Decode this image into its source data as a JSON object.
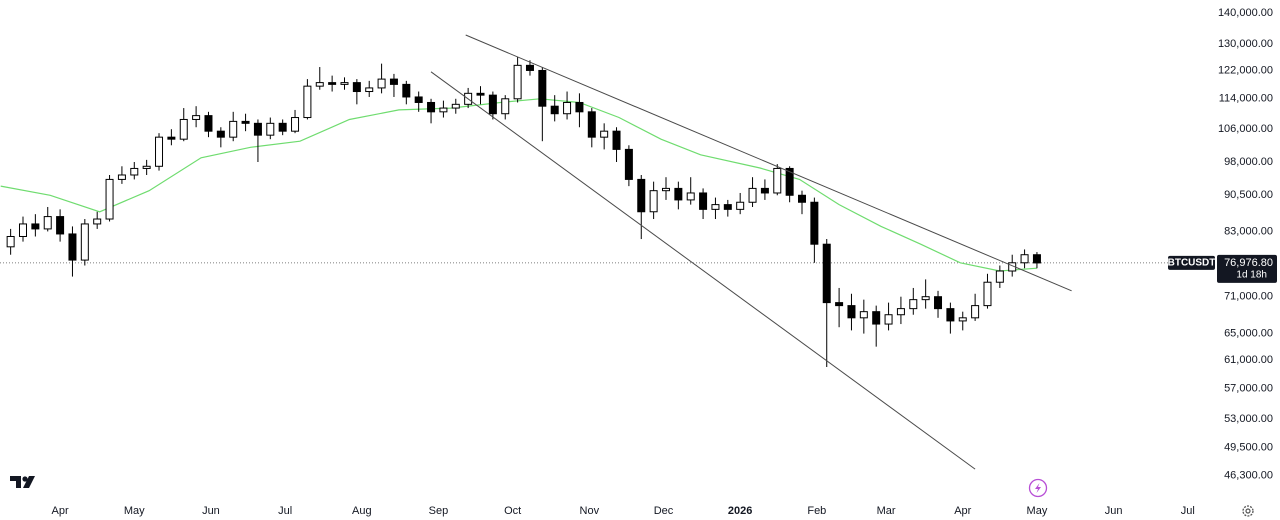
{
  "chart_data": {
    "type": "candlestick",
    "symbol": "BTCUSDT",
    "last_price": {
      "value": 76976.8,
      "label": "76,976.80"
    },
    "countdown": "1d 18h",
    "log_y": true,
    "ylim": [
      43650,
      144400
    ],
    "yticks": [
      {
        "value": 140000,
        "label": "140,000.00"
      },
      {
        "value": 130000,
        "label": "130,000.00"
      },
      {
        "value": 122000,
        "label": "122,000.00"
      },
      {
        "value": 114000,
        "label": "114,000.00"
      },
      {
        "value": 106000,
        "label": "106,000.00"
      },
      {
        "value": 98000,
        "label": "98,000.00"
      },
      {
        "value": 90500,
        "label": "90,500.00"
      },
      {
        "value": 83000,
        "label": "83,000.00"
      },
      {
        "value": 71000,
        "label": "71,000.00"
      },
      {
        "value": 65000,
        "label": "65,000.00"
      },
      {
        "value": 61000,
        "label": "61,000.00"
      },
      {
        "value": 57000,
        "label": "57,000.00"
      },
      {
        "value": 53000,
        "label": "53,000.00"
      },
      {
        "value": 49500,
        "label": "49,500.00"
      },
      {
        "value": 46300,
        "label": "46,300.00"
      }
    ],
    "xlim": [
      -24.3,
      467
    ],
    "xticks": [
      {
        "value": 0,
        "label": "Apr"
      },
      {
        "value": 30,
        "label": "May"
      },
      {
        "value": 61,
        "label": "Jun"
      },
      {
        "value": 91,
        "label": "Jul"
      },
      {
        "value": 122,
        "label": "Aug"
      },
      {
        "value": 153,
        "label": "Sep"
      },
      {
        "value": 183,
        "label": "Oct"
      },
      {
        "value": 214,
        "label": "Nov"
      },
      {
        "value": 244,
        "label": "Dec"
      },
      {
        "value": 275,
        "label": "2026"
      },
      {
        "value": 306,
        "label": "Feb"
      },
      {
        "value": 334,
        "label": "Mar"
      },
      {
        "value": 365,
        "label": "Apr"
      },
      {
        "value": 395,
        "label": "May"
      },
      {
        "value": 426,
        "label": "Jun"
      },
      {
        "value": 456,
        "label": "Jul"
      }
    ],
    "up_color": "#ffffff",
    "down_color": "#000000",
    "x": [
      -20,
      -15,
      -10,
      -5,
      0,
      5,
      10,
      15,
      20,
      25,
      30,
      35,
      40,
      45,
      50,
      55,
      60,
      65,
      70,
      75,
      80,
      85,
      90,
      95,
      100,
      105,
      110,
      115,
      120,
      125,
      130,
      135,
      140,
      145,
      150,
      155,
      160,
      165,
      170,
      175,
      180,
      185,
      190,
      195,
      200,
      205,
      210,
      215,
      220,
      225,
      230,
      235,
      240,
      245,
      250,
      255,
      260,
      265,
      270,
      275,
      280,
      285,
      290,
      295,
      300,
      305,
      310,
      315,
      320,
      325,
      330,
      335,
      340,
      345,
      350,
      355,
      360,
      365,
      370,
      375,
      380,
      385,
      390,
      395
    ],
    "open": [
      80000,
      82000,
      84500,
      83500,
      86000,
      82500,
      77500,
      84500,
      85500,
      94000,
      95000,
      96500,
      97000,
      104000,
      103500,
      108500,
      109500,
      105500,
      104000,
      108000,
      107500,
      104500,
      107500,
      105500,
      109000,
      117500,
      118500,
      118000,
      118500,
      116000,
      117000,
      119500,
      118000,
      114500,
      113000,
      110500,
      111500,
      112500,
      115500,
      115000,
      110000,
      114000,
      123500,
      122000,
      112000,
      110000,
      113000,
      110500,
      104000,
      105500,
      101000,
      94000,
      87000,
      91500,
      92000,
      89500,
      91000,
      87500,
      88500,
      87500,
      89000,
      92000,
      91000,
      96500,
      90500,
      89000,
      80500,
      70000,
      69500,
      67500,
      68500,
      66500,
      68000,
      69000,
      70500,
      71000,
      69000,
      67000,
      67500,
      69500,
      73500,
      75500,
      77000,
      78500
    ],
    "high": [
      83500,
      86000,
      86500,
      88000,
      87500,
      84000,
      85500,
      87000,
      95000,
      97000,
      98000,
      98500,
      105000,
      106000,
      111500,
      112000,
      110500,
      106500,
      110500,
      110000,
      108500,
      109000,
      108500,
      111000,
      119500,
      123000,
      120500,
      120000,
      119500,
      119000,
      124000,
      121000,
      119000,
      116000,
      114000,
      113500,
      114000,
      117000,
      117500,
      116000,
      115000,
      126000,
      125000,
      123000,
      115000,
      116000,
      115500,
      111500,
      107500,
      106500,
      102000,
      95000,
      93500,
      94500,
      93500,
      94500,
      92000,
      90000,
      89500,
      91000,
      94500,
      94000,
      97500,
      97000,
      91500,
      90000,
      81500,
      72500,
      71500,
      70500,
      69500,
      70000,
      71000,
      72500,
      74000,
      72000,
      70000,
      68500,
      71500,
      75000,
      76500,
      78500,
      79500,
      79000
    ],
    "low": [
      78500,
      81000,
      82000,
      83000,
      81000,
      74500,
      76500,
      83500,
      85000,
      93000,
      94000,
      95000,
      96000,
      102000,
      103000,
      106500,
      104000,
      101500,
      103000,
      105500,
      98000,
      103500,
      104500,
      105000,
      108500,
      116500,
      116000,
      116500,
      112500,
      114500,
      115500,
      114500,
      112500,
      110500,
      107500,
      109000,
      110000,
      111500,
      112500,
      108500,
      108500,
      113000,
      120500,
      103000,
      108000,
      108500,
      106500,
      101500,
      101000,
      98000,
      92500,
      81500,
      85500,
      89500,
      87500,
      88500,
      85500,
      85500,
      86000,
      86500,
      88000,
      89500,
      90500,
      89000,
      86500,
      77000,
      60000,
      66000,
      65500,
      65000,
      63000,
      65500,
      66500,
      68000,
      69000,
      67500,
      65000,
      65500,
      67000,
      69000,
      72500,
      74500,
      76000,
      76000
    ],
    "close": [
      82000,
      84500,
      83500,
      86000,
      82500,
      77500,
      84500,
      85500,
      94000,
      95000,
      96500,
      97000,
      104000,
      103500,
      108500,
      109500,
      105500,
      104000,
      108000,
      107500,
      104500,
      107500,
      105500,
      109000,
      117500,
      118500,
      118000,
      118500,
      116000,
      117000,
      119500,
      118000,
      114500,
      113000,
      110500,
      111500,
      112500,
      115500,
      115000,
      110000,
      114000,
      123500,
      122000,
      112000,
      110000,
      113000,
      110500,
      104000,
      105500,
      101000,
      94000,
      87000,
      91500,
      92000,
      89500,
      91000,
      87500,
      88500,
      87500,
      89000,
      92000,
      91000,
      96500,
      90500,
      89000,
      80500,
      70000,
      69500,
      67500,
      68500,
      66500,
      68000,
      69000,
      70500,
      71000,
      69000,
      67000,
      67500,
      69500,
      73500,
      75500,
      77000,
      78500,
      76976.8
    ],
    "ma": {
      "color": "#6fdc6f",
      "x": [
        -24,
        -4,
        16,
        36,
        57,
        77,
        97,
        117,
        137,
        158,
        178,
        194,
        210,
        226,
        243,
        259,
        283,
        299,
        315,
        332,
        348,
        364,
        380,
        395
      ],
      "values": [
        92500,
        90500,
        87000,
        91500,
        99000,
        101500,
        103000,
        108500,
        111000,
        111500,
        113000,
        114000,
        113000,
        109000,
        103500,
        99700,
        96600,
        94000,
        88500,
        84000,
        80500,
        77000,
        75500,
        76000
      ]
    },
    "trendlines": [
      {
        "color": "#4a4a4a",
        "x": [
          164,
          409
        ],
        "values": [
          132800,
          72000
        ]
      },
      {
        "color": "#4a4a4a",
        "x": [
          150,
          370
        ],
        "values": [
          121600,
          47000
        ]
      }
    ]
  }
}
